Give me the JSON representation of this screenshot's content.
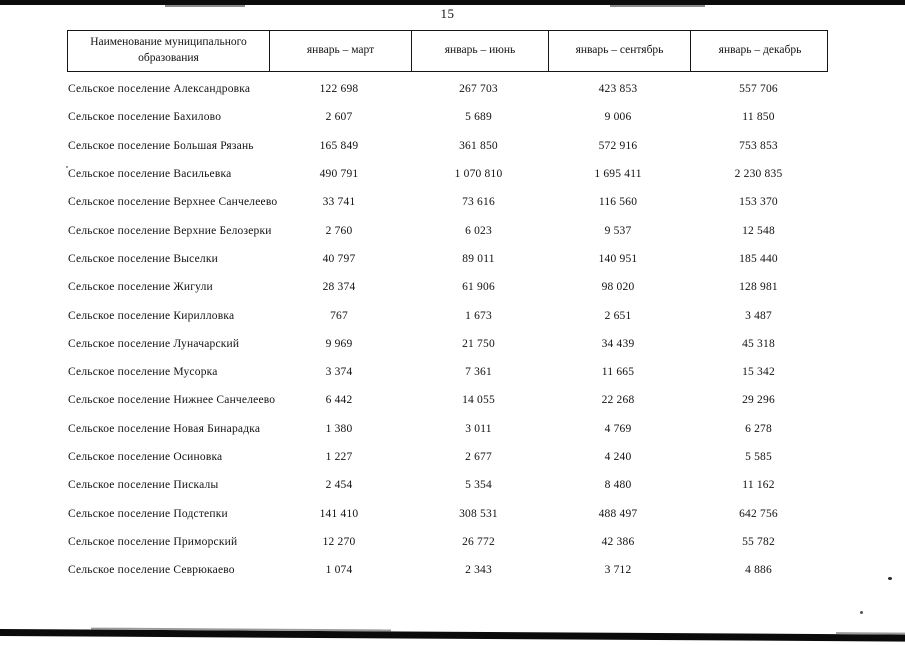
{
  "page": {
    "number": "15"
  },
  "table": {
    "header": {
      "name_column": "Наименование муниципального образования",
      "period_columns": [
        "январь – март",
        "январь – июнь",
        "январь – сентябрь",
        "январь – декабрь"
      ]
    },
    "rows": [
      {
        "name": "Сельское поселение Александровка",
        "values": [
          "122 698",
          "267 703",
          "423 853",
          "557 706"
        ]
      },
      {
        "name": "Сельское поселение Бахилово",
        "values": [
          "2 607",
          "5 689",
          "9 006",
          "11 850"
        ]
      },
      {
        "name": "Сельское поселение Большая Рязань",
        "values": [
          "165 849",
          "361 850",
          "572 916",
          "753 853"
        ]
      },
      {
        "name": "Сельское поселение Васильевка",
        "values": [
          "490 791",
          "1 070 810",
          "1 695 411",
          "2 230 835"
        ]
      },
      {
        "name": "Сельское поселение Верхнее Санчелеево",
        "values": [
          "33 741",
          "73 616",
          "116 560",
          "153 370"
        ]
      },
      {
        "name": "Сельское поселение Верхние Белозерки",
        "values": [
          "2 760",
          "6 023",
          "9 537",
          "12 548"
        ]
      },
      {
        "name": "Сельское поселение Выселки",
        "values": [
          "40 797",
          "89 011",
          "140 951",
          "185 440"
        ]
      },
      {
        "name": "Сельское поселение Жигули",
        "values": [
          "28 374",
          "61 906",
          "98 020",
          "128 981"
        ]
      },
      {
        "name": "Сельское поселение Кирилловка",
        "values": [
          "767",
          "1 673",
          "2 651",
          "3 487"
        ]
      },
      {
        "name": "Сельское поселение Луначарский",
        "values": [
          "9 969",
          "21 750",
          "34 439",
          "45 318"
        ]
      },
      {
        "name": "Сельское поселение Мусорка",
        "values": [
          "3 374",
          "7 361",
          "11 665",
          "15 342"
        ]
      },
      {
        "name": "Сельское поселение Нижнее Санчелеево",
        "values": [
          "6 442",
          "14 055",
          "22 268",
          "29 296"
        ]
      },
      {
        "name": "Сельское поселение Новая Бинарадка",
        "values": [
          "1 380",
          "3 011",
          "4 769",
          "6 278"
        ]
      },
      {
        "name": "Сельское поселение Осиновка",
        "values": [
          "1 227",
          "2 677",
          "4 240",
          "5 585"
        ]
      },
      {
        "name": "Сельское поселение Пискалы",
        "values": [
          "2 454",
          "5 354",
          "8 480",
          "11 162"
        ]
      },
      {
        "name": "Сельское поселение Подстепки",
        "values": [
          "141 410",
          "308 531",
          "488 497",
          "642 756"
        ]
      },
      {
        "name": "Сельское поселение Приморский",
        "values": [
          "12 270",
          "26 772",
          "42 386",
          "55 782"
        ]
      },
      {
        "name": "Сельское поселение Севрюкаево",
        "values": [
          "1 074",
          "2 343",
          "3 712",
          "4 886"
        ]
      }
    ]
  }
}
